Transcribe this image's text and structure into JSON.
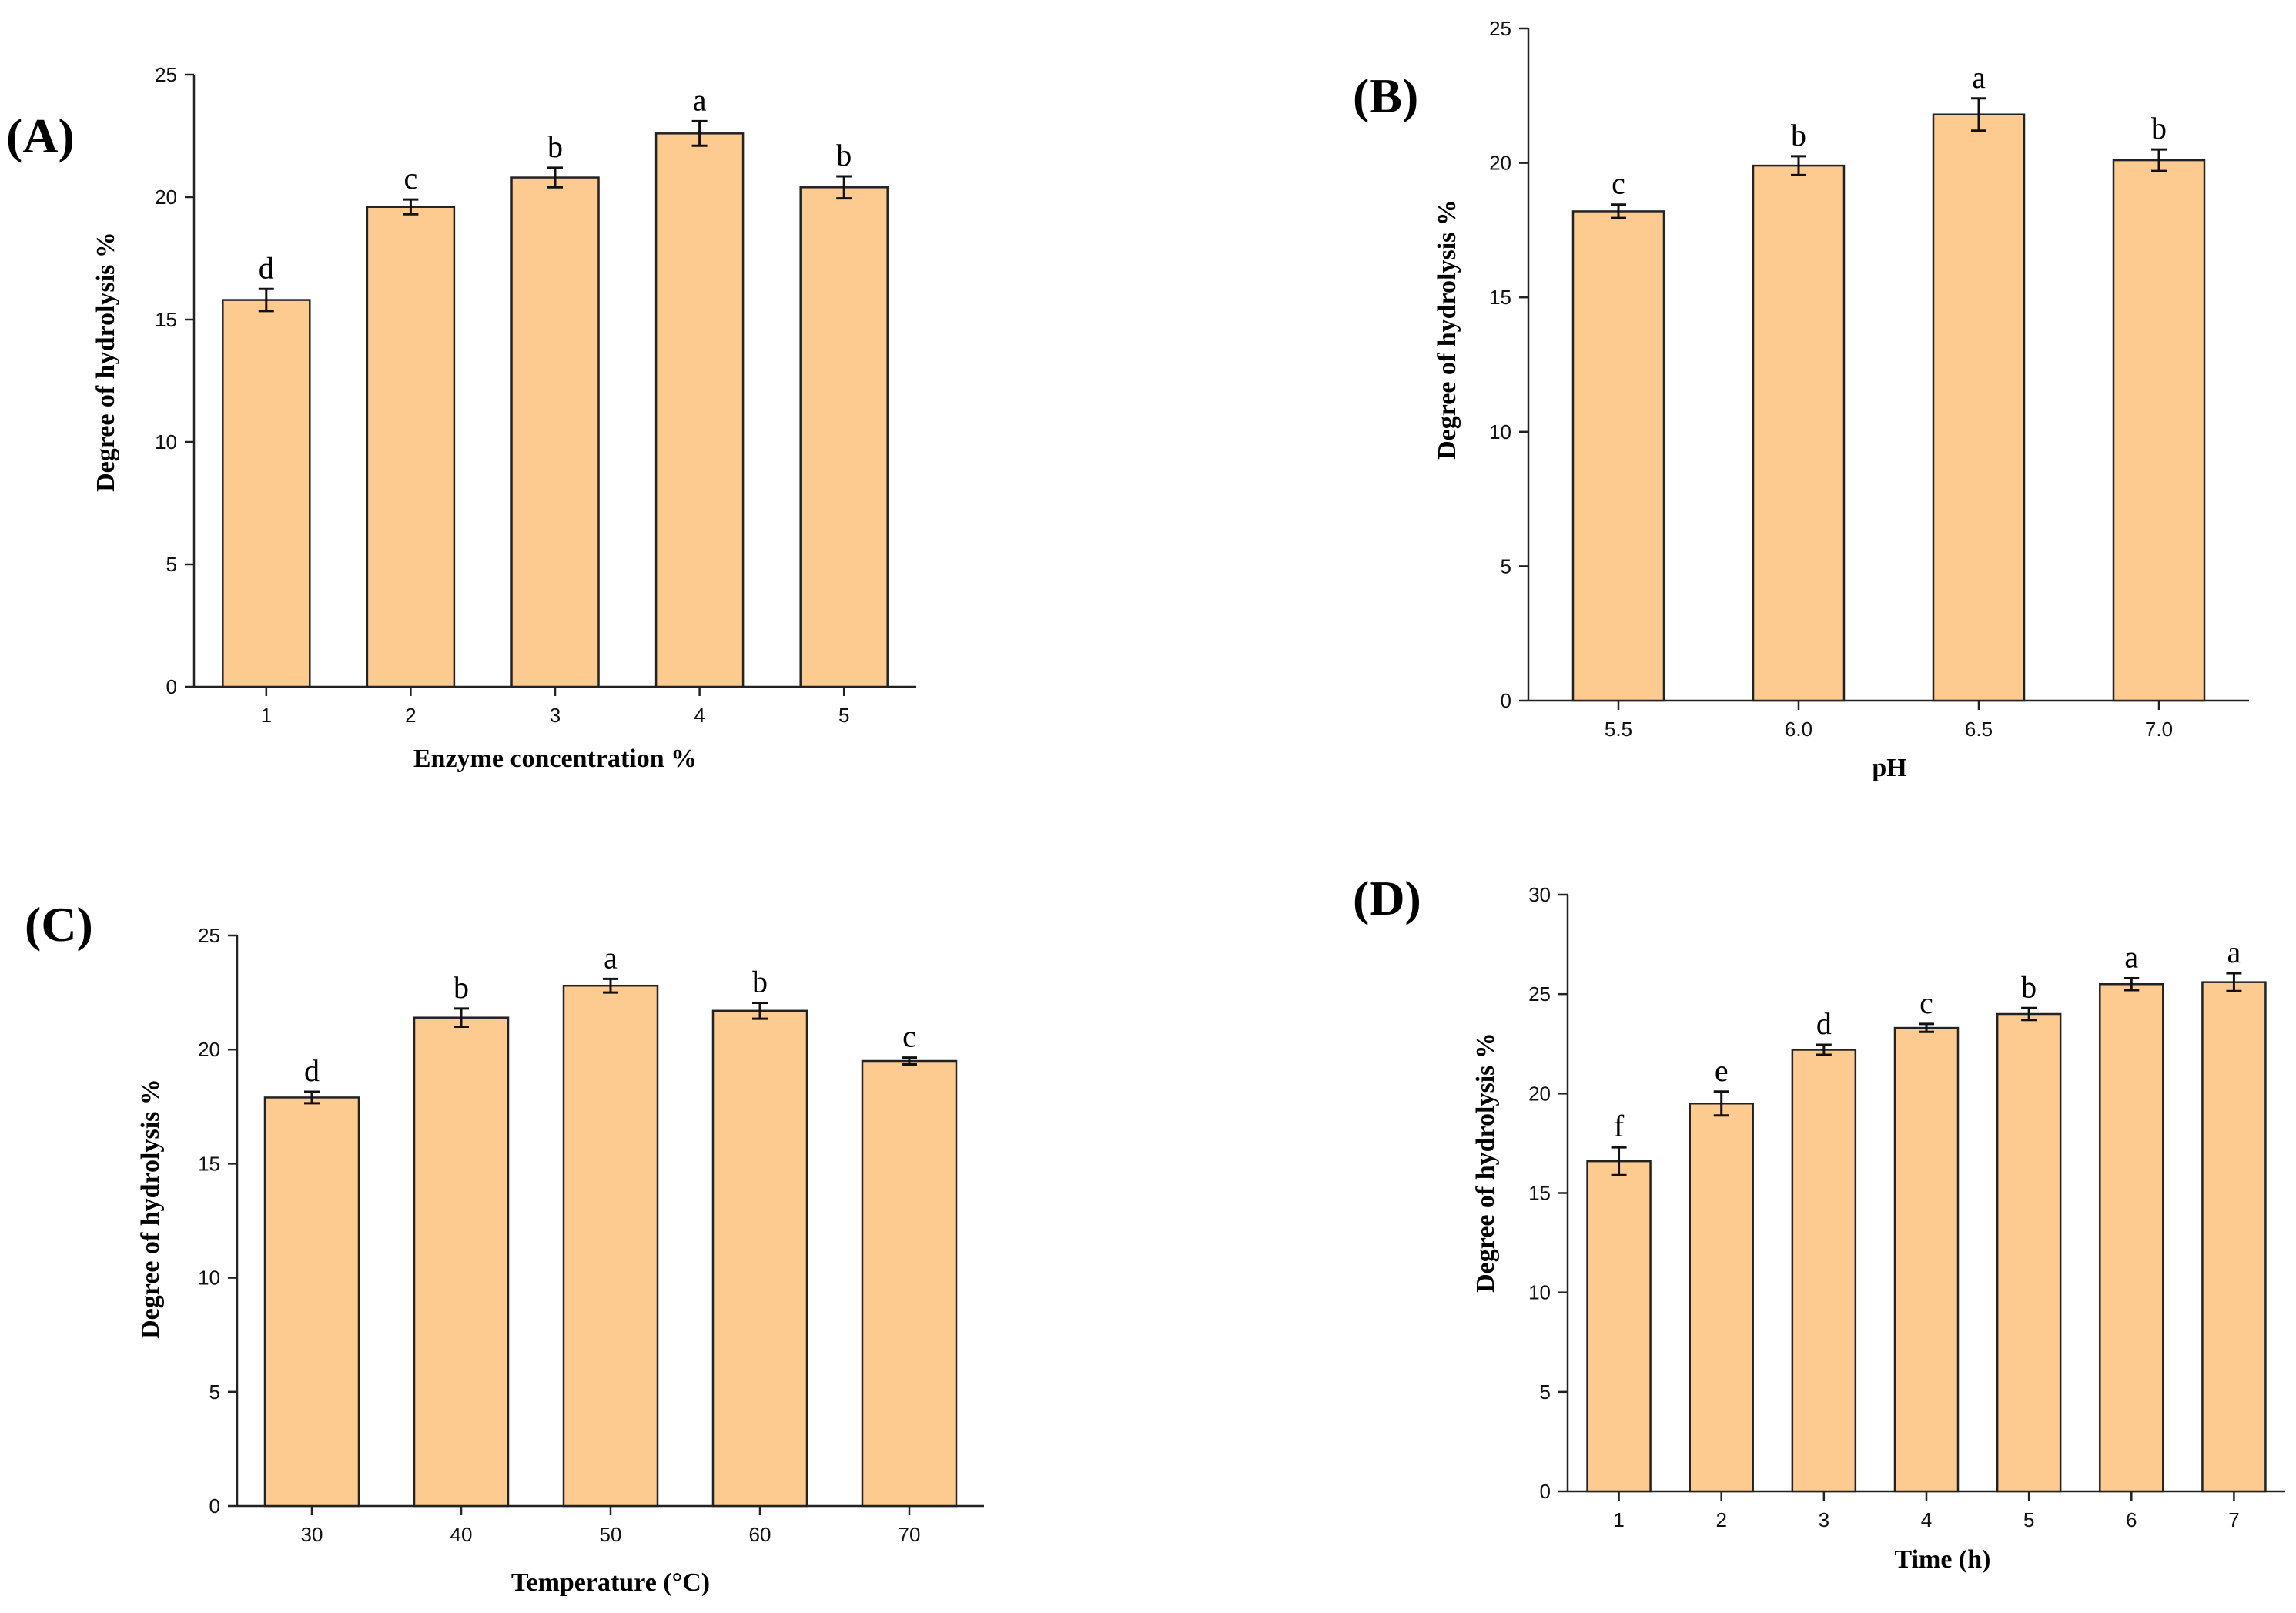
{
  "figure_title": "",
  "chart_data": [
    {
      "id": "A",
      "type": "bar",
      "panel_label": "(A)",
      "categories": [
        "1",
        "2",
        "3",
        "4",
        "5"
      ],
      "values": [
        15.8,
        19.6,
        20.8,
        22.6,
        20.4
      ],
      "errors": [
        0.45,
        0.3,
        0.4,
        0.5,
        0.45
      ],
      "significance": [
        "d",
        "c",
        "b",
        "a",
        "b"
      ],
      "xlabel": "Enzyme concentration %",
      "ylabel": "Degree of hydrolysis %",
      "ylim": [
        0,
        25
      ],
      "yticks": [
        0,
        5,
        10,
        15,
        20,
        25
      ],
      "bar_color": "#fdca90"
    },
    {
      "id": "B",
      "type": "bar",
      "panel_label": "(B)",
      "categories": [
        "5.5",
        "6.0",
        "6.5",
        "7.0"
      ],
      "values": [
        18.2,
        19.9,
        21.8,
        20.1
      ],
      "errors": [
        0.25,
        0.35,
        0.6,
        0.4
      ],
      "significance": [
        "c",
        "b",
        "a",
        "b"
      ],
      "xlabel": "pH",
      "ylabel": "Degree of hydrolysis %",
      "ylim": [
        0,
        25
      ],
      "yticks": [
        0,
        5,
        10,
        15,
        20,
        25
      ],
      "bar_color": "#fdca90"
    },
    {
      "id": "C",
      "type": "bar",
      "panel_label": "(C)",
      "categories": [
        "30",
        "40",
        "50",
        "60",
        "70"
      ],
      "values": [
        17.9,
        21.4,
        22.8,
        21.7,
        19.5
      ],
      "errors": [
        0.25,
        0.4,
        0.3,
        0.35,
        0.15
      ],
      "significance": [
        "d",
        "b",
        "a",
        "b",
        "c"
      ],
      "xlabel": "Temperature (°C)",
      "ylabel": "Degree of hydrolysis %",
      "ylim": [
        0,
        25
      ],
      "yticks": [
        0,
        5,
        10,
        15,
        20,
        25
      ],
      "bar_color": "#fdca90"
    },
    {
      "id": "D",
      "type": "bar",
      "panel_label": "(D)",
      "categories": [
        "1",
        "2",
        "3",
        "4",
        "5",
        "6",
        "7"
      ],
      "values": [
        16.6,
        19.5,
        22.2,
        23.3,
        24.0,
        25.5,
        25.6
      ],
      "errors": [
        0.7,
        0.6,
        0.25,
        0.2,
        0.3,
        0.3,
        0.45
      ],
      "significance": [
        "f",
        "e",
        "d",
        "c",
        "b",
        "a",
        "a"
      ],
      "xlabel": "Time (h)",
      "ylabel": "Degree of hydrolysis %",
      "ylim": [
        0,
        30
      ],
      "yticks": [
        0,
        5,
        10,
        15,
        20,
        25,
        30
      ],
      "bar_color": "#fdca90"
    }
  ]
}
